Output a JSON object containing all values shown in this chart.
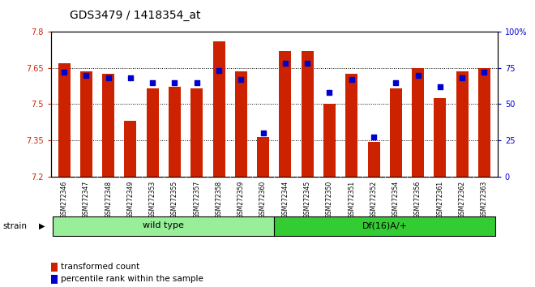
{
  "title": "GDS3479 / 1418354_at",
  "samples": [
    "GSM272346",
    "GSM272347",
    "GSM272348",
    "GSM272349",
    "GSM272353",
    "GSM272355",
    "GSM272357",
    "GSM272358",
    "GSM272359",
    "GSM272360",
    "GSM272344",
    "GSM272345",
    "GSM272350",
    "GSM272351",
    "GSM272352",
    "GSM272354",
    "GSM272356",
    "GSM272361",
    "GSM272362",
    "GSM272363"
  ],
  "transformed_count": [
    7.67,
    7.635,
    7.625,
    7.43,
    7.565,
    7.57,
    7.565,
    7.76,
    7.635,
    7.365,
    7.72,
    7.72,
    7.5,
    7.625,
    7.345,
    7.565,
    7.65,
    7.525,
    7.635,
    7.65
  ],
  "percentile_values": [
    72,
    70,
    68,
    68,
    65,
    65,
    65,
    73,
    67,
    30,
    78,
    78,
    58,
    67,
    27,
    65,
    70,
    62,
    68,
    72
  ],
  "wild_type_count": 10,
  "df16_count": 10,
  "group_labels": [
    "wild type",
    "Df(16)A/+"
  ],
  "ylim_left": [
    7.2,
    7.8
  ],
  "ylim_right": [
    0,
    100
  ],
  "yticks_left": [
    7.2,
    7.35,
    7.5,
    7.65,
    7.8
  ],
  "yticks_right": [
    0,
    25,
    50,
    75,
    100
  ],
  "bar_color": "#cc2200",
  "dot_color": "#0000cc",
  "bg_color": "#ffffff",
  "plot_bg": "#ffffff",
  "wt_group_color": "#99ee99",
  "df_group_color": "#33cc33",
  "strain_label": "strain",
  "legend_items": [
    "transformed count",
    "percentile rank within the sample"
  ],
  "title_fontsize": 10,
  "tick_fontsize": 7,
  "label_fontsize": 7.5,
  "group_fontsize": 8
}
